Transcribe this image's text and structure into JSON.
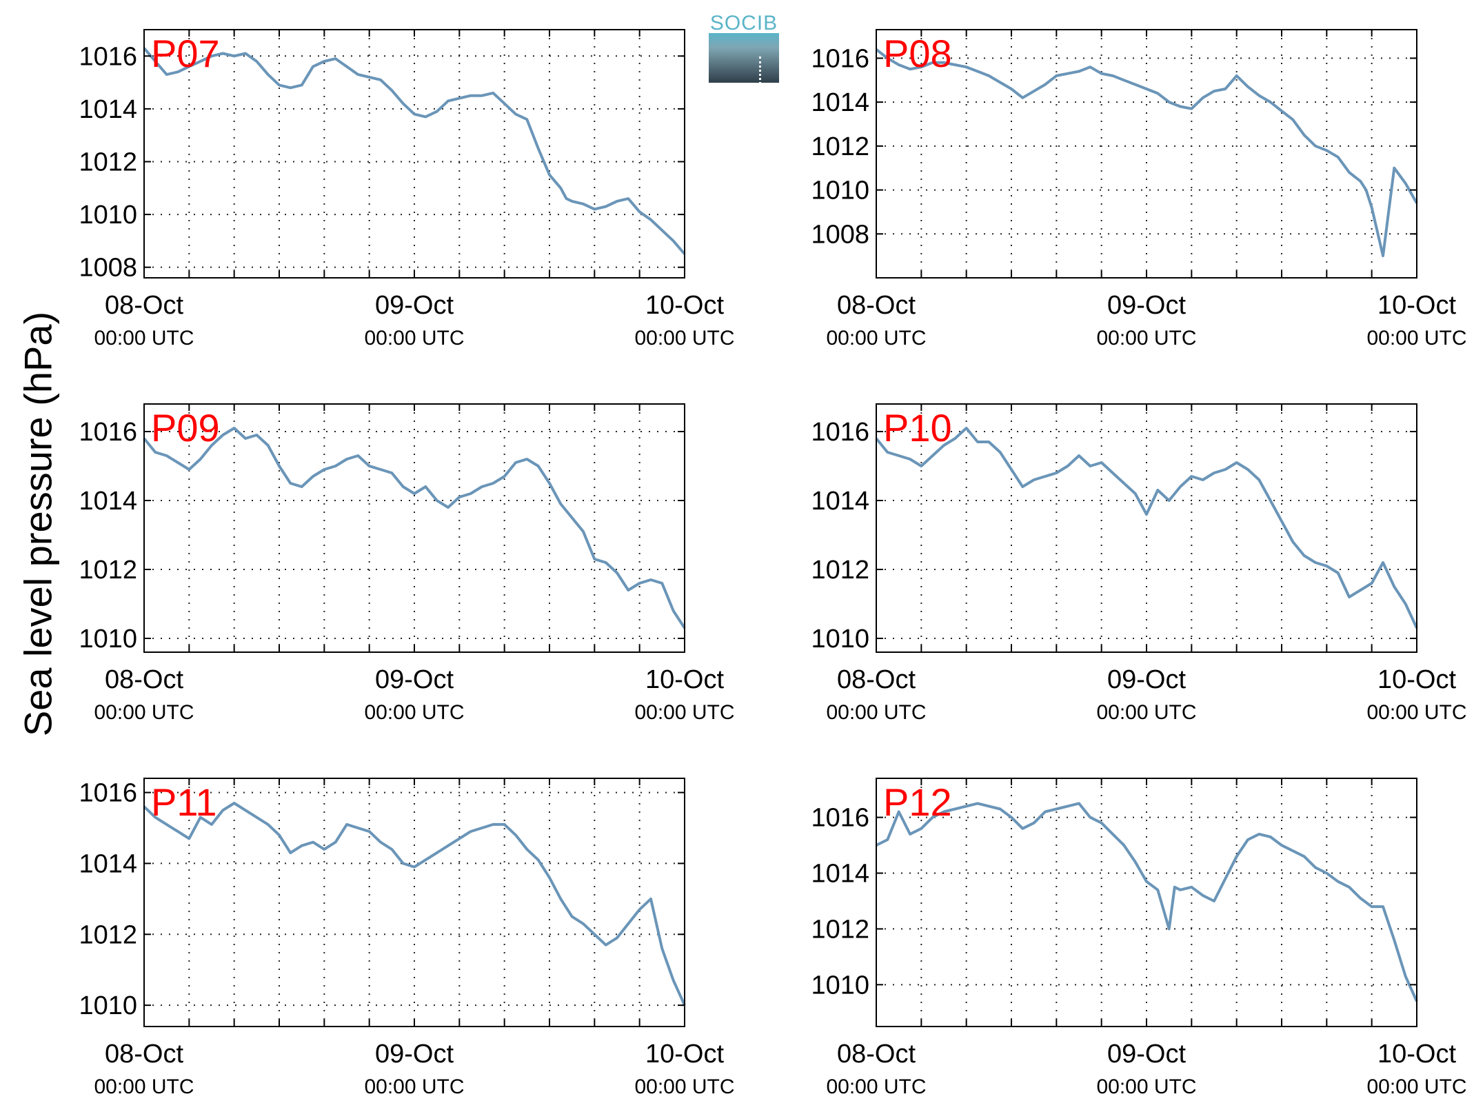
{
  "ylabel": "Sea level pressure (hPa)",
  "logo": {
    "text": "SOCIB"
  },
  "chart_data": [
    {
      "type": "line",
      "title": "P07",
      "xlim": [
        0,
        48
      ],
      "ylim": [
        1007.6,
        1017.0
      ],
      "yticks": [
        1008,
        1010,
        1012,
        1014,
        1016
      ],
      "xticks": [
        {
          "x": 0,
          "date": "08-Oct",
          "time": "00:00 UTC"
        },
        {
          "x": 24,
          "date": "09-Oct",
          "time": "00:00 UTC"
        },
        {
          "x": 48,
          "date": "10-Oct",
          "time": "00:00 UTC"
        }
      ],
      "grid": true,
      "series": [
        {
          "color": "#6a95b8",
          "x": [
            0,
            1,
            2,
            3,
            4,
            5,
            6,
            7,
            8,
            9,
            10,
            11,
            12,
            13,
            14,
            15,
            16,
            17,
            18,
            19,
            20,
            21,
            22,
            23,
            24,
            25,
            26,
            27,
            28,
            29,
            30,
            31,
            32,
            33,
            34,
            35,
            36,
            37,
            37.5,
            38,
            39,
            40,
            41,
            42,
            43,
            44,
            45,
            46,
            47,
            48
          ],
          "y": [
            1016.3,
            1015.8,
            1015.3,
            1015.4,
            1015.6,
            1015.8,
            1016.0,
            1016.1,
            1016.0,
            1016.1,
            1015.8,
            1015.3,
            1014.9,
            1014.8,
            1014.9,
            1015.6,
            1015.8,
            1015.9,
            1015.6,
            1015.3,
            1015.2,
            1015.1,
            1014.7,
            1014.2,
            1013.8,
            1013.7,
            1013.9,
            1014.3,
            1014.4,
            1014.5,
            1014.5,
            1014.6,
            1014.2,
            1013.8,
            1013.6,
            1012.5,
            1011.5,
            1011.0,
            1010.6,
            1010.5,
            1010.4,
            1010.2,
            1010.3,
            1010.5,
            1010.6,
            1010.1,
            1009.8,
            1009.4,
            1009.0,
            1008.5
          ]
        }
      ]
    },
    {
      "type": "line",
      "title": "P08",
      "xlim": [
        0,
        48
      ],
      "ylim": [
        1006.0,
        1017.3
      ],
      "yticks": [
        1008,
        1010,
        1012,
        1014,
        1016
      ],
      "xticks": [
        {
          "x": 0,
          "date": "08-Oct",
          "time": "00:00 UTC"
        },
        {
          "x": 24,
          "date": "09-Oct",
          "time": "00:00 UTC"
        },
        {
          "x": 48,
          "date": "10-Oct",
          "time": "00:00 UTC"
        }
      ],
      "grid": true,
      "series": [
        {
          "color": "#6a95b8",
          "x": [
            0,
            1,
            2,
            3,
            4,
            5,
            6,
            7,
            8,
            9,
            10,
            11,
            12,
            13,
            14,
            15,
            16,
            17,
            18,
            19,
            20,
            21,
            22,
            23,
            24,
            25,
            26,
            27,
            28,
            29,
            30,
            31,
            32,
            33,
            34,
            35,
            36,
            37,
            38,
            39,
            40,
            41,
            42,
            43,
            43.5,
            44,
            45,
            46,
            47,
            48
          ],
          "y": [
            1016.4,
            1016.0,
            1015.7,
            1015.5,
            1015.6,
            1015.8,
            1015.8,
            1015.7,
            1015.6,
            1015.4,
            1015.2,
            1014.9,
            1014.6,
            1014.2,
            1014.5,
            1014.8,
            1015.2,
            1015.3,
            1015.4,
            1015.6,
            1015.3,
            1015.2,
            1015.0,
            1014.8,
            1014.6,
            1014.4,
            1014.0,
            1013.8,
            1013.7,
            1014.2,
            1014.5,
            1014.6,
            1015.2,
            1014.7,
            1014.3,
            1014.0,
            1013.6,
            1013.2,
            1012.5,
            1012.0,
            1011.8,
            1011.5,
            1010.8,
            1010.4,
            1010.0,
            1009.2,
            1007.0,
            1011.0,
            1010.3,
            1009.4
          ]
        }
      ]
    },
    {
      "type": "line",
      "title": "P09",
      "xlim": [
        0,
        48
      ],
      "ylim": [
        1009.6,
        1016.8
      ],
      "yticks": [
        1010,
        1012,
        1014,
        1016
      ],
      "xticks": [
        {
          "x": 0,
          "date": "08-Oct",
          "time": "00:00 UTC"
        },
        {
          "x": 24,
          "date": "09-Oct",
          "time": "00:00 UTC"
        },
        {
          "x": 48,
          "date": "10-Oct",
          "time": "00:00 UTC"
        }
      ],
      "grid": true,
      "series": [
        {
          "color": "#6a95b8",
          "x": [
            0,
            1,
            2,
            3,
            4,
            5,
            6,
            7,
            8,
            9,
            10,
            11,
            12,
            13,
            14,
            15,
            16,
            17,
            18,
            19,
            20,
            21,
            22,
            23,
            24,
            25,
            26,
            27,
            28,
            29,
            30,
            31,
            32,
            33,
            34,
            35,
            36,
            37,
            38,
            39,
            40,
            41,
            42,
            43,
            44,
            45,
            46,
            47,
            48
          ],
          "y": [
            1015.8,
            1015.4,
            1015.3,
            1015.1,
            1014.9,
            1015.2,
            1015.6,
            1015.9,
            1016.1,
            1015.8,
            1015.9,
            1015.6,
            1015.0,
            1014.5,
            1014.4,
            1014.7,
            1014.9,
            1015.0,
            1015.2,
            1015.3,
            1015.0,
            1014.9,
            1014.8,
            1014.4,
            1014.2,
            1014.4,
            1014.0,
            1013.8,
            1014.1,
            1014.2,
            1014.4,
            1014.5,
            1014.7,
            1015.1,
            1015.2,
            1015.0,
            1014.5,
            1013.9,
            1013.5,
            1013.1,
            1012.3,
            1012.2,
            1011.9,
            1011.4,
            1011.6,
            1011.7,
            1011.6,
            1010.8,
            1010.3
          ]
        }
      ]
    },
    {
      "type": "line",
      "title": "P10",
      "xlim": [
        0,
        48
      ],
      "ylim": [
        1009.6,
        1016.8
      ],
      "yticks": [
        1010,
        1012,
        1014,
        1016
      ],
      "xticks": [
        {
          "x": 0,
          "date": "08-Oct",
          "time": "00:00 UTC"
        },
        {
          "x": 24,
          "date": "09-Oct",
          "time": "00:00 UTC"
        },
        {
          "x": 48,
          "date": "10-Oct",
          "time": "00:00 UTC"
        }
      ],
      "grid": true,
      "series": [
        {
          "color": "#6a95b8",
          "x": [
            0,
            1,
            2,
            3,
            4,
            5,
            6,
            7,
            8,
            9,
            10,
            11,
            12,
            13,
            14,
            15,
            16,
            17,
            18,
            19,
            20,
            21,
            22,
            23,
            24,
            25,
            26,
            27,
            28,
            29,
            30,
            31,
            32,
            33,
            34,
            35,
            36,
            37,
            38,
            39,
            40,
            41,
            42,
            43,
            44,
            45,
            46,
            47,
            48
          ],
          "y": [
            1015.8,
            1015.4,
            1015.3,
            1015.2,
            1015.0,
            1015.3,
            1015.6,
            1015.8,
            1016.1,
            1015.7,
            1015.7,
            1015.4,
            1014.9,
            1014.4,
            1014.6,
            1014.7,
            1014.8,
            1015.0,
            1015.3,
            1015.0,
            1015.1,
            1014.8,
            1014.5,
            1014.2,
            1013.6,
            1014.3,
            1014.0,
            1014.4,
            1014.7,
            1014.6,
            1014.8,
            1014.9,
            1015.1,
            1014.9,
            1014.6,
            1014.0,
            1013.4,
            1012.8,
            1012.4,
            1012.2,
            1012.1,
            1011.9,
            1011.2,
            1011.4,
            1011.6,
            1012.2,
            1011.5,
            1011.0,
            1010.3
          ]
        }
      ]
    },
    {
      "type": "line",
      "title": "P11",
      "xlim": [
        0,
        48
      ],
      "ylim": [
        1009.4,
        1016.4
      ],
      "yticks": [
        1010,
        1012,
        1014,
        1016
      ],
      "xticks": [
        {
          "x": 0,
          "date": "08-Oct",
          "time": "00:00 UTC"
        },
        {
          "x": 24,
          "date": "09-Oct",
          "time": "00:00 UTC"
        },
        {
          "x": 48,
          "date": "10-Oct",
          "time": "00:00 UTC"
        }
      ],
      "grid": true,
      "series": [
        {
          "color": "#6a95b8",
          "x": [
            0,
            1,
            2,
            3,
            4,
            5,
            6,
            7,
            8,
            9,
            10,
            11,
            12,
            13,
            14,
            15,
            16,
            17,
            18,
            19,
            20,
            21,
            22,
            23,
            24,
            25,
            26,
            27,
            28,
            29,
            30,
            31,
            32,
            33,
            34,
            35,
            36,
            37,
            38,
            39,
            40,
            41,
            42,
            43,
            44,
            45,
            46,
            47,
            48
          ],
          "y": [
            1015.6,
            1015.3,
            1015.1,
            1014.9,
            1014.7,
            1015.3,
            1015.1,
            1015.5,
            1015.7,
            1015.5,
            1015.3,
            1015.1,
            1014.8,
            1014.3,
            1014.5,
            1014.6,
            1014.4,
            1014.6,
            1015.1,
            1015.0,
            1014.9,
            1014.6,
            1014.4,
            1014.0,
            1013.9,
            1014.1,
            1014.3,
            1014.5,
            1014.7,
            1014.9,
            1015.0,
            1015.1,
            1015.1,
            1014.8,
            1014.4,
            1014.1,
            1013.6,
            1013.0,
            1012.5,
            1012.3,
            1012.0,
            1011.7,
            1011.9,
            1012.3,
            1012.7,
            1013.0,
            1011.6,
            1010.7,
            1010.0
          ]
        }
      ]
    },
    {
      "type": "line",
      "title": "P12",
      "xlim": [
        0,
        48
      ],
      "ylim": [
        1008.5,
        1017.4
      ],
      "yticks": [
        1010,
        1012,
        1014,
        1016
      ],
      "xticks": [
        {
          "x": 0,
          "date": "08-Oct",
          "time": "00:00 UTC"
        },
        {
          "x": 24,
          "date": "09-Oct",
          "time": "00:00 UTC"
        },
        {
          "x": 48,
          "date": "10-Oct",
          "time": "00:00 UTC"
        }
      ],
      "grid": true,
      "series": [
        {
          "color": "#6a95b8",
          "x": [
            0,
            1,
            2,
            3,
            4,
            5,
            6,
            7,
            8,
            9,
            10,
            11,
            12,
            13,
            14,
            15,
            16,
            17,
            18,
            19,
            20,
            21,
            22,
            23,
            24,
            25,
            26,
            26.5,
            27,
            28,
            29,
            30,
            31,
            32,
            33,
            34,
            35,
            36,
            37,
            38,
            39,
            40,
            41,
            42,
            43,
            44,
            45,
            46,
            47,
            48
          ],
          "y": [
            1015.0,
            1015.2,
            1016.2,
            1015.4,
            1015.6,
            1016.0,
            1016.2,
            1016.3,
            1016.4,
            1016.5,
            1016.4,
            1016.3,
            1016.0,
            1015.6,
            1015.8,
            1016.2,
            1016.3,
            1016.4,
            1016.5,
            1016.0,
            1015.8,
            1015.4,
            1015.0,
            1014.4,
            1013.7,
            1013.4,
            1012.0,
            1013.5,
            1013.4,
            1013.5,
            1013.2,
            1013.0,
            1013.8,
            1014.6,
            1015.2,
            1015.4,
            1015.3,
            1015.0,
            1014.8,
            1014.6,
            1014.2,
            1014.0,
            1013.7,
            1013.5,
            1013.1,
            1012.8,
            1012.8,
            1011.6,
            1010.3,
            1009.4
          ]
        }
      ]
    }
  ]
}
